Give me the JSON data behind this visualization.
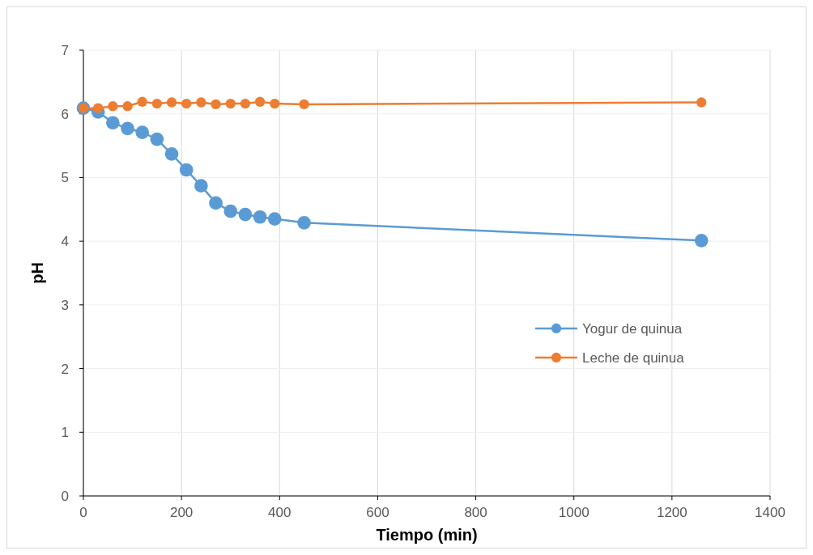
{
  "chart_data": {
    "type": "line",
    "xlabel": "Tiempo (min)",
    "ylabel": "pH",
    "x": [
      0,
      30,
      60,
      90,
      120,
      150,
      180,
      210,
      240,
      270,
      300,
      330,
      360,
      390,
      450,
      1260
    ],
    "series": [
      {
        "name": "Yogur de quinua",
        "color": "#5b9bd5",
        "values": [
          6.09,
          6.03,
          5.86,
          5.77,
          5.71,
          5.6,
          5.37,
          5.12,
          4.87,
          4.6,
          4.47,
          4.42,
          4.38,
          4.35,
          4.29,
          4.01
        ]
      },
      {
        "name": "Leche de quinua",
        "color": "#ed7d31",
        "values": [
          6.09,
          6.09,
          6.12,
          6.12,
          6.19,
          6.16,
          6.18,
          6.16,
          6.18,
          6.15,
          6.16,
          6.16,
          6.19,
          6.16,
          6.15,
          6.18
        ]
      }
    ],
    "xlim": [
      0,
      1400
    ],
    "xticks": [
      0,
      200,
      400,
      600,
      800,
      1000,
      1200,
      1400
    ],
    "ylim": [
      0,
      7
    ],
    "yticks": [
      0,
      1,
      2,
      3,
      4,
      5,
      6,
      7
    ],
    "grid": true,
    "legend": "right",
    "marker": "circle",
    "line_style": "solid"
  }
}
